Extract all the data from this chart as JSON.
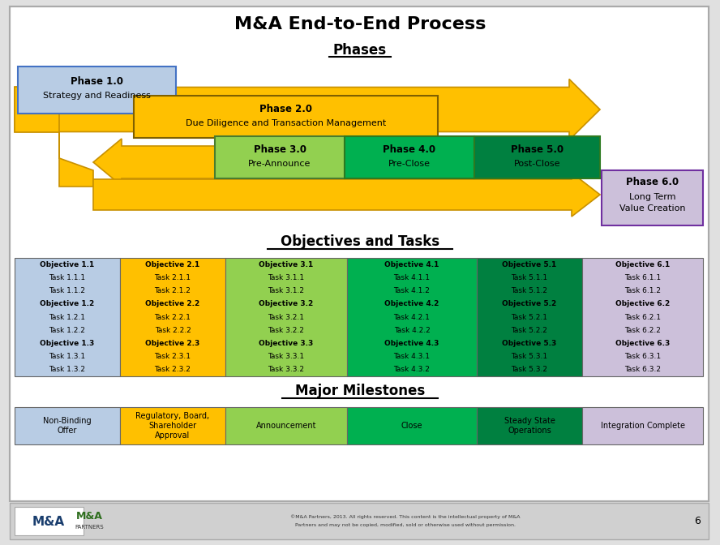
{
  "title": "M&A End-to-End Process",
  "bg_color": "#e0e0e0",
  "white_bg": "#ffffff",
  "arrow_color": "#ffc000",
  "arrow_edge": "#c89000",
  "phases_label": "Phases",
  "objectives_label": "Objectives and Tasks",
  "milestones_label": "Major Milestones",
  "phase1": {
    "label1": "Phase 1.0",
    "label2": "Strategy and Readiness",
    "color": "#b8cce4",
    "border": "#4472c4"
  },
  "phase2": {
    "label1": "Phase 2.0",
    "label2": "Due Diligence and Transaction Management",
    "color": "#ffc000",
    "border": "#7f6000"
  },
  "phase3": {
    "label1": "Phase 3.0",
    "label2": "Pre-Announce",
    "color": "#92d050",
    "border": "#4a7c2f"
  },
  "phase4": {
    "label1": "Phase 4.0",
    "label2": "Pre-Close",
    "color": "#00b050",
    "border": "#2d7a20"
  },
  "phase5": {
    "label1": "Phase 5.0",
    "label2": "Post-Close",
    "color": "#00b050",
    "border": "#2d7a20"
  },
  "phase6": {
    "label1": "Phase 6.0",
    "label2": "Long Term\nValue Creation",
    "color": "#ccc0da",
    "border": "#7030a0"
  },
  "col_colors": [
    "#b8cce4",
    "#ffc000",
    "#92d050",
    "#00b050",
    "#00b050",
    "#ccc0da"
  ],
  "col5_dark": "#008040",
  "objectives_data": [
    [
      "Objective 1.1",
      "Task 1.1.1",
      "Task 1.1.2",
      "Objective 1.2",
      "Task 1.2.1",
      "Task 1.2.2",
      "Objective 1.3",
      "Task 1.3.1",
      "Task 1.3.2"
    ],
    [
      "Objective 2.1",
      "Task 2.1.1",
      "Task 2.1.2",
      "Objective 2.2",
      "Task 2.2.1",
      "Task 2.2.2",
      "Objective 2.3",
      "Task 2.3.1",
      "Task 2.3.2"
    ],
    [
      "Objective 3.1",
      "Task 3.1.1",
      "Task 3.1.2",
      "Objective 3.2",
      "Task 3.2.1",
      "Task 3.2.2",
      "Objective 3.3",
      "Task 3.3.1",
      "Task 3.3.2"
    ],
    [
      "Objective 4.1",
      "Task 4.1.1",
      "Task 4.1.2",
      "Objective 4.2",
      "Task 4.2.1",
      "Task 4.2.2",
      "Objective 4.3",
      "Task 4.3.1",
      "Task 4.3.2"
    ],
    [
      "Objective 5.1",
      "Task 5.1.1",
      "Task 5.1.2",
      "Objective 5.2",
      "Task 5.2.1",
      "Task 5.2.2",
      "Objective 5.3",
      "Task 5.3.1",
      "Task 5.3.2"
    ],
    [
      "Objective 6.1",
      "Task 6.1.1",
      "Task 6.1.2",
      "Objective 6.2",
      "Task 6.2.1",
      "Task 6.2.2",
      "Objective 6.3",
      "Task 6.3.1",
      "Task 6.3.2"
    ]
  ],
  "milestones": [
    {
      "label": "Non-Binding\nOffer",
      "color": "#b8cce4"
    },
    {
      "label": "Regulatory, Board,\nShareholder\nApproval",
      "color": "#ffc000"
    },
    {
      "label": "Announcement",
      "color": "#92d050"
    },
    {
      "label": "Close",
      "color": "#00b050"
    },
    {
      "label": "Steady State\nOperations",
      "color": "#00b050"
    },
    {
      "label": "Integration Complete",
      "color": "#ccc0da"
    }
  ],
  "footer_gray": "#d0d0d0"
}
